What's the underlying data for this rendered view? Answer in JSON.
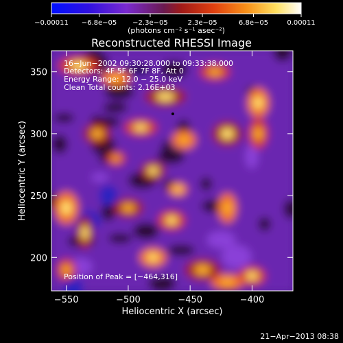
{
  "chart_data": {
    "type": "heatmap",
    "title": "Reconstructed RHESSI Image",
    "xlabel": "Heliocentric X (arcsec)",
    "ylabel": "Heliocentric Y (arcsec)",
    "xlim": [
      -562,
      -367
    ],
    "ylim": [
      173,
      367
    ],
    "x_ticks": [
      -550,
      -500,
      -450,
      -400
    ],
    "x_tick_labels": [
      "−550",
      "−500",
      "−450",
      "−400"
    ],
    "y_ticks": [
      200,
      250,
      300,
      350
    ],
    "y_tick_labels": [
      "200",
      "250",
      "300",
      "350"
    ],
    "colorbar": {
      "range": [
        -0.00011,
        0.00011
      ],
      "ticks": [
        -0.00011,
        -6.8e-05,
        -2.3e-05,
        2.3e-05,
        6.8e-05,
        0.00011
      ],
      "tick_labels": [
        "−0.00011",
        "−6.8e−05",
        "−2.3e−05",
        "2.3e−05",
        "6.8e−05",
        "0.00011"
      ],
      "units": "(photons cm⁻² s⁻¹ asec⁻²)"
    },
    "annotations": {
      "line1": "16−Jun−2002 09:30:28.000 to 09:33:38.000",
      "line2": "Detectors: 4F 5F 6F 7F 8F, Att 0",
      "line3": "Energy Range: 12.0 − 25.0 keV",
      "line4": "Clean    Total counts: 2.16E+03",
      "peak": "Position of Peak = [−464,316]"
    },
    "peak_position": [
      -464,
      316
    ],
    "footer_date": "21−Apr−2013 08:38",
    "colormap_stops": [
      "#0010ff",
      "#5a1fd0",
      "#8a3cd0",
      "#6a1a40",
      "#c0201a",
      "#f05a10",
      "#f8a020",
      "#fff070",
      "#ffffff"
    ]
  }
}
